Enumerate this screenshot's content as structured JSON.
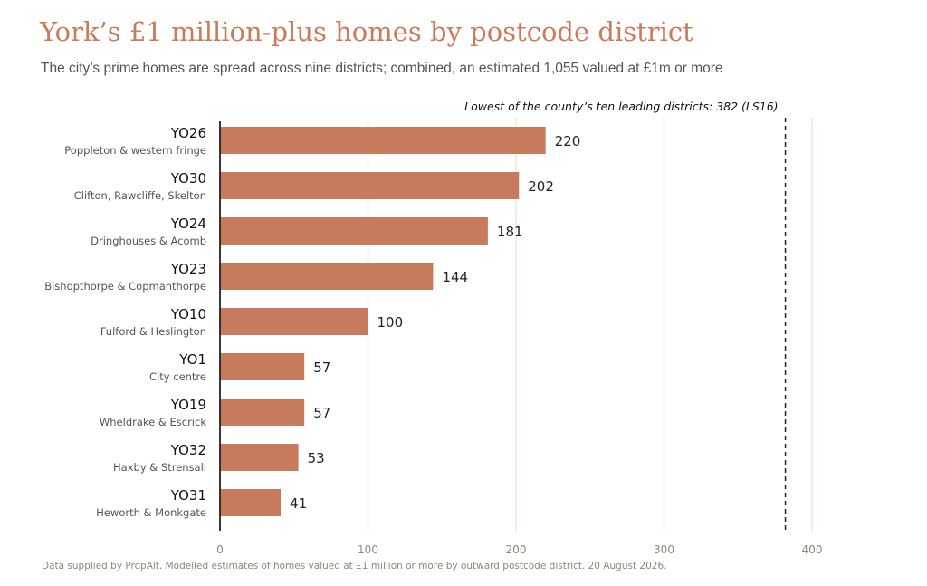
{
  "chart_data": {
    "type": "bar",
    "orientation": "horizontal",
    "title": "York’s £1 million-plus homes by postcode district",
    "subtitle": "The city’s prime homes are spread across nine districts; combined, an estimated 1,055 valued at £1m or more",
    "footnote": "Data supplied by PropAlt. Modelled estimates of homes valued at £1 million or more by outward postcode district. 20 August 2026.",
    "categories": [
      {
        "code": "YO26",
        "name": "Poppleton & western fringe"
      },
      {
        "code": "YO30",
        "name": "Clifton, Rawcliffe, Skelton"
      },
      {
        "code": "YO24",
        "name": "Dringhouses & Acomb"
      },
      {
        "code": "YO23",
        "name": "Bishopthorpe & Copmanthorpe"
      },
      {
        "code": "YO10",
        "name": "Fulford & Heslington"
      },
      {
        "code": "YO1",
        "name": "City centre"
      },
      {
        "code": "YO19",
        "name": "Wheldrake & Escrick"
      },
      {
        "code": "YO32",
        "name": "Haxby & Strensall"
      },
      {
        "code": "YO31",
        "name": "Heworth & Monkgate"
      }
    ],
    "values": [
      220,
      202,
      181,
      144,
      100,
      57,
      57,
      53,
      41
    ],
    "xlim": [
      0,
      400
    ],
    "xticks": [
      "0",
      "100",
      "200",
      "300",
      "400"
    ],
    "grid": true,
    "reference_line": {
      "value": 382,
      "label": "Lowest of the county’s ten leading districts: 382 (LS16)"
    },
    "colors": {
      "bar": "#c67b5c",
      "title": "#c97c5d",
      "grid": "#efe6dc",
      "axis": "#222222"
    }
  }
}
